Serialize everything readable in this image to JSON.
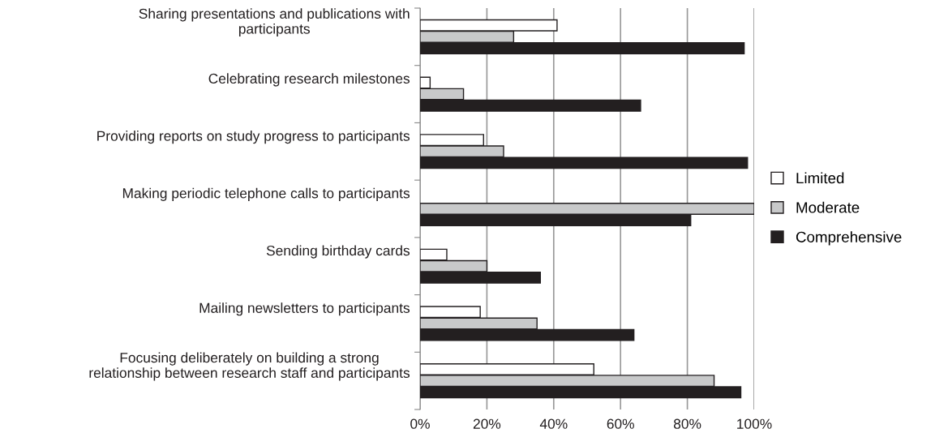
{
  "chart_data": {
    "type": "bar",
    "orientation": "horizontal",
    "categories": [
      "Sharing presentations and publications with\nparticipants",
      "Celebrating research milestones",
      "Providing reports on study progress to participants",
      "Making periodic telephone calls to participants",
      "Sending birthday cards",
      "Mailing newsletters to participants",
      "Focusing deliberately on building a strong\nrelationship between research staff and participants"
    ],
    "series": [
      {
        "name": "Limited",
        "color": "#ffffff",
        "values": [
          41,
          3,
          19,
          null,
          8,
          18,
          52
        ]
      },
      {
        "name": "Moderate",
        "color": "#c8c9ca",
        "values": [
          28,
          13,
          25,
          100,
          20,
          35,
          88
        ]
      },
      {
        "name": "Comprehensive",
        "color": "#231f20",
        "values": [
          97,
          66,
          98,
          81,
          36,
          64,
          96
        ]
      }
    ],
    "xlim": [
      0,
      100
    ],
    "xticks": [
      {
        "value": 0,
        "label": "0%"
      },
      {
        "value": 20,
        "label": "20%"
      },
      {
        "value": 40,
        "label": "40%"
      },
      {
        "value": 60,
        "label": "60%"
      },
      {
        "value": 80,
        "label": "80%"
      },
      {
        "value": 100,
        "label": "100%"
      }
    ],
    "grid": "x",
    "legend": "right"
  }
}
